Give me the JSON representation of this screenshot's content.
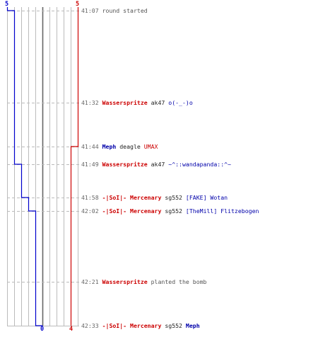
{
  "colors": {
    "ct": "#0000cc",
    "t": "#cc0000",
    "grid": "#bbbbbb",
    "center": "#666666",
    "dash": "#bbbbbb"
  },
  "scores": {
    "ct_start": "5",
    "t_start": "5",
    "ct_end": "0",
    "t_end": "4"
  },
  "ct_alive": [
    5,
    4,
    4,
    4,
    3,
    2,
    1,
    1,
    0
  ],
  "t_alive": [
    5,
    5,
    5,
    4,
    4,
    4,
    4,
    4,
    4
  ],
  "events": [
    {
      "time": "41:07",
      "parts": [
        {
          "text": "round started",
          "style": "plain"
        }
      ]
    },
    {
      "time": "41:32",
      "parts": [
        {
          "text": "Wasserspritze",
          "style": "t"
        },
        {
          "text": " ak47 ",
          "style": "weapon"
        },
        {
          "text": "o(-_-)o",
          "style": "nt"
        }
      ]
    },
    {
      "time": "41:44",
      "parts": [
        {
          "text": "Meph",
          "style": "ct"
        },
        {
          "text": " deagle ",
          "style": "weapon"
        },
        {
          "text": "UMAX",
          "style": "nr"
        }
      ]
    },
    {
      "time": "41:49",
      "parts": [
        {
          "text": "Wasserspritze",
          "style": "t"
        },
        {
          "text": " ak47 ",
          "style": "weapon"
        },
        {
          "text": "~^::wandapanda::^~",
          "style": "nt"
        }
      ]
    },
    {
      "time": "41:58",
      "parts": [
        {
          "text": "-|SoI|- Mercenary",
          "style": "t"
        },
        {
          "text": " sg552 ",
          "style": "weapon"
        },
        {
          "text": "[FAKE] Wotan",
          "style": "nt"
        }
      ]
    },
    {
      "time": "42:02",
      "parts": [
        {
          "text": "-|SoI|- Mercenary",
          "style": "t"
        },
        {
          "text": " sg552 ",
          "style": "weapon"
        },
        {
          "text": "[TheMill] Flitzebogen",
          "style": "nt"
        }
      ]
    },
    {
      "time": "42:21",
      "parts": [
        {
          "text": "Wasserspritze",
          "style": "t"
        },
        {
          "text": " planted the bomb",
          "style": "plain"
        }
      ]
    },
    {
      "time": "42:33",
      "parts": [
        {
          "text": "-|SoI|- Mercenary",
          "style": "t"
        },
        {
          "text": " sg552 ",
          "style": "weapon"
        },
        {
          "text": "Meph",
          "style": "ct"
        }
      ]
    }
  ]
}
